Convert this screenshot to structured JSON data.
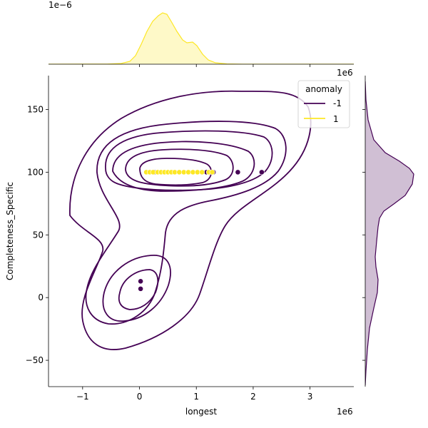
{
  "chart_data": {
    "type": "scatter",
    "xlabel": "longest",
    "ylabel": "Completeness_Specific",
    "x_offset_text": "1e6",
    "top_marginal_offset_text": "1e−6",
    "right_marginal_offset_text": "1e6",
    "xlim": [
      -1.6,
      3.77
    ],
    "ylim": [
      -71,
      177
    ],
    "x_ticks": [
      -1,
      0,
      1,
      2,
      3
    ],
    "x_tick_labels": [
      "−1",
      "0",
      "1",
      "2",
      "3"
    ],
    "y_ticks": [
      -50,
      0,
      50,
      100,
      150
    ],
    "y_tick_labels": [
      "−50",
      "0",
      "50",
      "100",
      "150"
    ],
    "legend": {
      "title": "anomaly",
      "placement": "top-right",
      "entries": [
        {
          "label": "-1",
          "color": "#440154"
        },
        {
          "label": "1",
          "color": "#fde725"
        }
      ]
    },
    "series": [
      {
        "name": "-1",
        "color": "#440154",
        "points": [
          {
            "x": 0.26,
            "y": 100
          },
          {
            "x": 1.18,
            "y": 100
          },
          {
            "x": 1.3,
            "y": 100
          },
          {
            "x": 1.73,
            "y": 100
          },
          {
            "x": 2.15,
            "y": 100
          },
          {
            "x": 0.02,
            "y": 13
          },
          {
            "x": 0.02,
            "y": 7
          }
        ]
      },
      {
        "name": "1",
        "color": "#fde725",
        "points": [
          {
            "x": 0.12,
            "y": 100
          },
          {
            "x": 0.18,
            "y": 100
          },
          {
            "x": 0.24,
            "y": 100
          },
          {
            "x": 0.32,
            "y": 100
          },
          {
            "x": 0.38,
            "y": 100
          },
          {
            "x": 0.44,
            "y": 100
          },
          {
            "x": 0.5,
            "y": 100
          },
          {
            "x": 0.56,
            "y": 100
          },
          {
            "x": 0.62,
            "y": 100
          },
          {
            "x": 0.7,
            "y": 100
          },
          {
            "x": 0.78,
            "y": 100
          },
          {
            "x": 0.86,
            "y": 100
          },
          {
            "x": 0.94,
            "y": 100
          },
          {
            "x": 1.02,
            "y": 100
          },
          {
            "x": 1.1,
            "y": 100
          },
          {
            "x": 1.22,
            "y": 100
          },
          {
            "x": 1.28,
            "y": 100
          }
        ]
      }
    ],
    "marginal_x_density_color": "#fde725",
    "marginal_y_density_color": "#440154",
    "kde_contour_color": "#440154",
    "grid": false
  }
}
